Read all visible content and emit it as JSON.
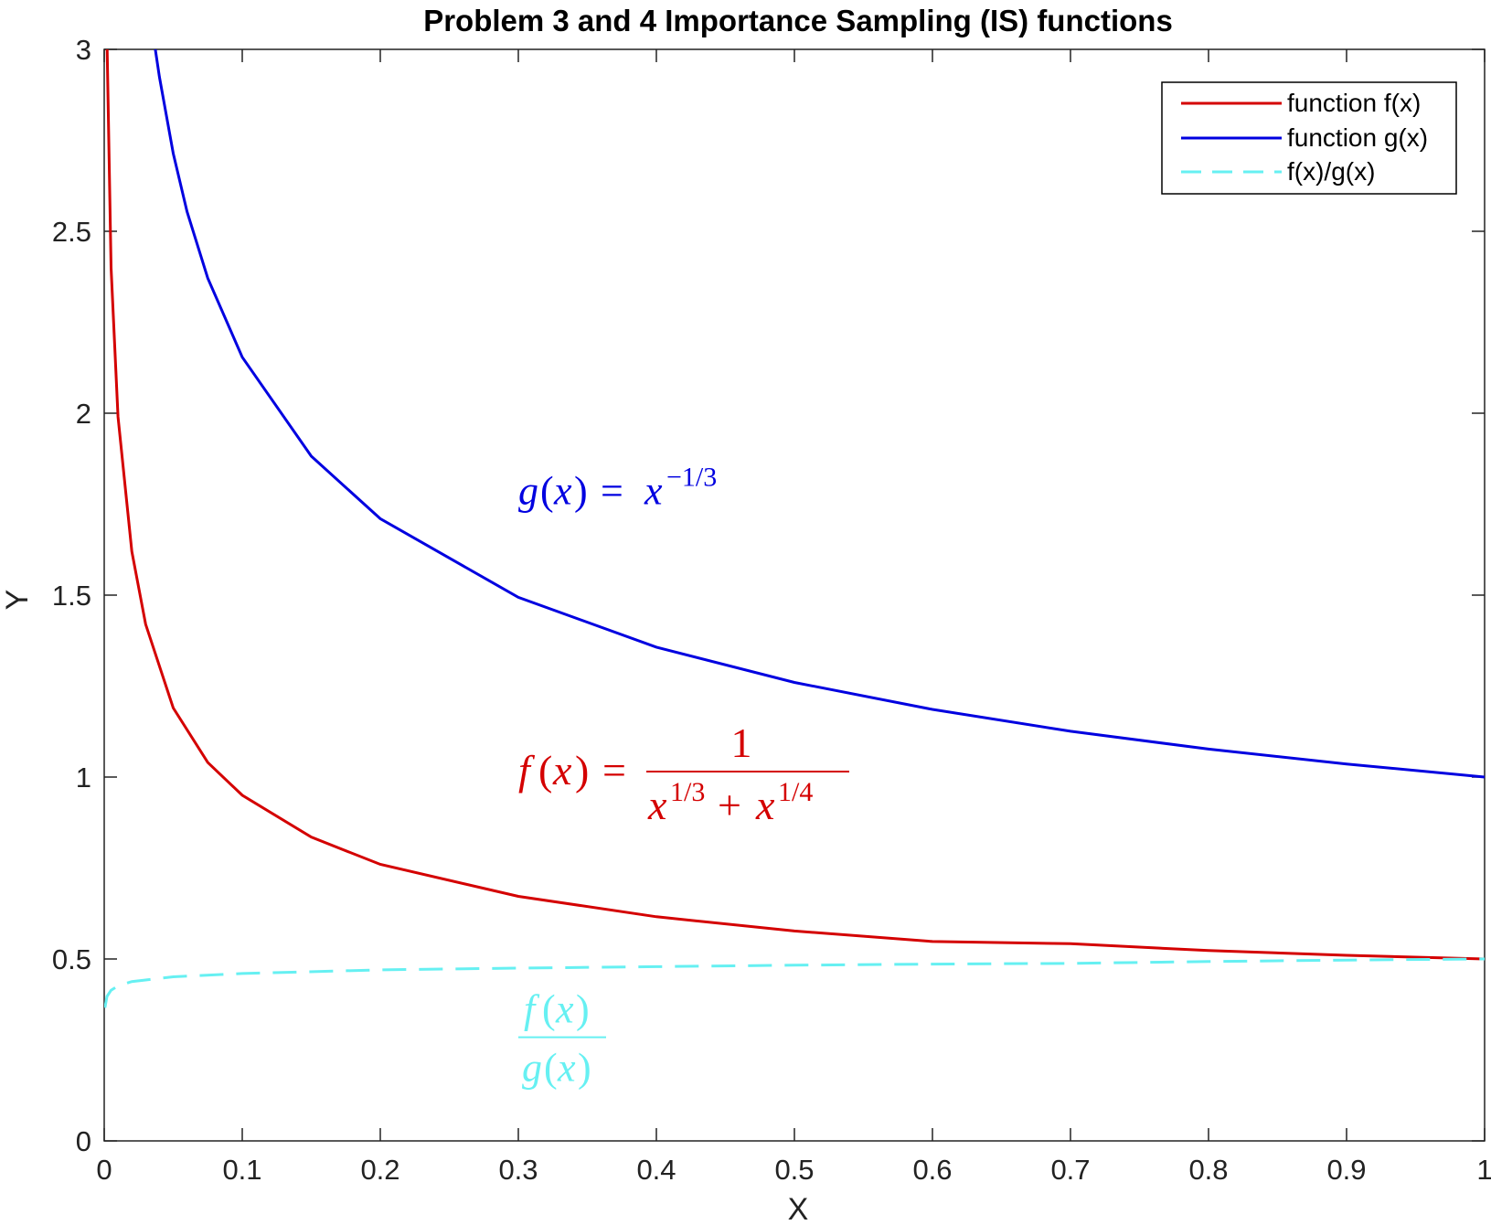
{
  "chart_data": {
    "type": "line",
    "title": "Problem 3 and 4 Importance Sampling (IS) functions",
    "xlabel": "X",
    "ylabel": "Y",
    "xlim": [
      0,
      1
    ],
    "ylim": [
      0,
      3
    ],
    "grid": false,
    "legend_position": "top-right",
    "x_ticks": [
      0,
      0.1,
      0.2,
      0.3,
      0.4,
      0.5,
      0.6,
      0.7,
      0.8,
      0.9,
      1
    ],
    "x_tick_labels": [
      "0",
      "0.1",
      "0.2",
      "0.3",
      "0.4",
      "0.5",
      "0.6",
      "0.7",
      "0.8",
      "0.9",
      "1"
    ],
    "y_ticks": [
      0,
      0.5,
      1,
      1.5,
      2,
      2.5,
      3
    ],
    "y_tick_labels": [
      "0",
      "0.5",
      "1",
      "1.5",
      "2",
      "2.5",
      "3"
    ],
    "series": [
      {
        "name": "function f(x)",
        "color": "#d40000",
        "style": "solid",
        "x": [
          0.002,
          0.005,
          0.01,
          0.02,
          0.03,
          0.05,
          0.075,
          0.1,
          0.15,
          0.2,
          0.3,
          0.4,
          0.5,
          0.6,
          0.7,
          0.8,
          0.9,
          1.0
        ],
        "y": [
          3.03,
          2.4,
          1.99,
          1.62,
          1.42,
          1.19,
          1.04,
          0.95,
          0.835,
          0.76,
          0.672,
          0.616,
          0.577,
          0.548,
          0.542,
          0.523,
          0.51,
          0.5
        ]
      },
      {
        "name": "function g(x)",
        "color": "#0000e0",
        "style": "solid",
        "x": [
          0.037,
          0.04,
          0.05,
          0.06,
          0.075,
          0.1,
          0.15,
          0.2,
          0.3,
          0.4,
          0.5,
          0.6,
          0.7,
          0.8,
          0.9,
          1.0
        ],
        "y": [
          3.0,
          2.924,
          2.714,
          2.554,
          2.371,
          2.154,
          1.882,
          1.71,
          1.494,
          1.357,
          1.26,
          1.186,
          1.126,
          1.077,
          1.036,
          1.0
        ]
      },
      {
        "name": "f(x)/g(x)",
        "color": "#66f0f2",
        "style": "dashed",
        "x": [
          0.0005,
          0.002,
          0.005,
          0.01,
          0.02,
          0.05,
          0.1,
          0.2,
          0.3,
          0.4,
          0.5,
          0.6,
          0.7,
          0.8,
          0.9,
          1.0
        ],
        "y": [
          0.366,
          0.397,
          0.414,
          0.426,
          0.438,
          0.451,
          0.46,
          0.47,
          0.475,
          0.479,
          0.483,
          0.486,
          0.488,
          0.493,
          0.497,
          0.5
        ]
      }
    ],
    "annotations": [
      {
        "name": "g-formula",
        "x": 0.3,
        "y": 1.75,
        "color": "#0000e0"
      },
      {
        "name": "f-formula",
        "x": 0.3,
        "y": 0.98,
        "color": "#d40000"
      },
      {
        "name": "ratio-formula",
        "x": 0.3,
        "y": 0.3,
        "color": "#66f0f2"
      }
    ]
  }
}
